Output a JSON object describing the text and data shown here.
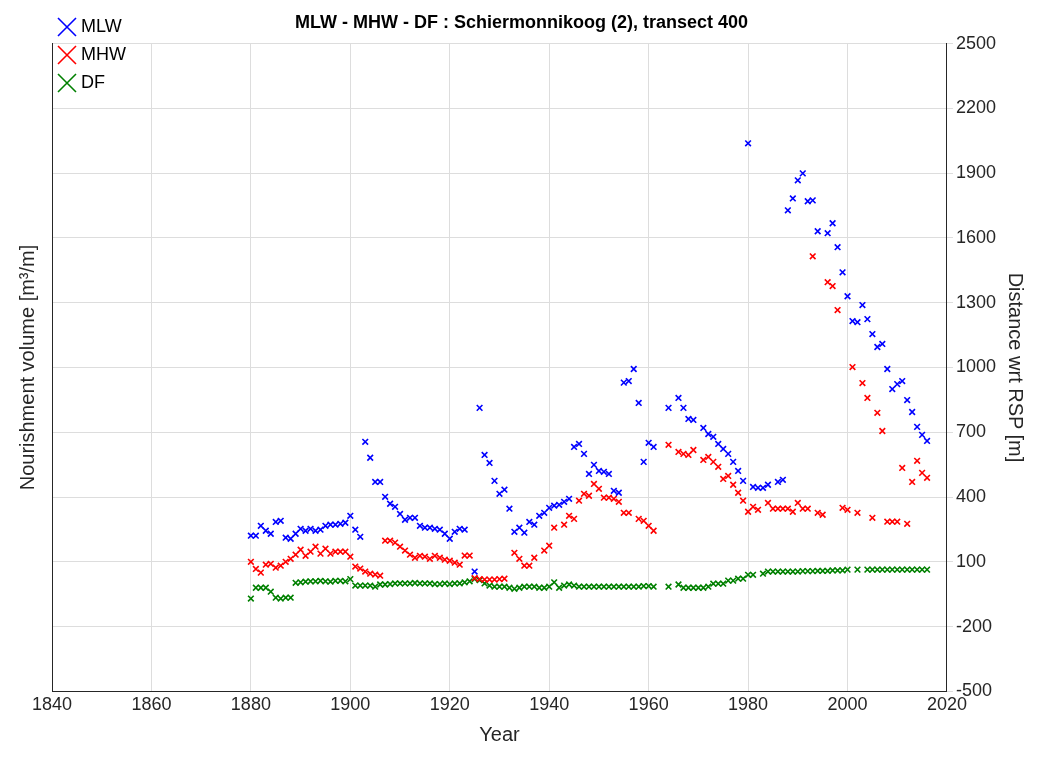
{
  "chart_data": {
    "type": "scatter",
    "title": "MLW - MHW - DF : Schiermonnikoog (2), transect 400",
    "xlabel": "Year",
    "ylabel": "Nourishment volume [m³/m]",
    "y2label": "Distance wrt RSP [m]",
    "xlim": [
      1840,
      2020
    ],
    "xticks": [
      1840,
      1860,
      1880,
      1900,
      1920,
      1940,
      1960,
      1980,
      2000,
      2020
    ],
    "y2lim": [
      -500,
      2500
    ],
    "y2ticks": [
      -500,
      -200,
      100,
      400,
      700,
      1000,
      1300,
      1600,
      1900,
      2200,
      2500
    ],
    "grid": true,
    "legend": "top left",
    "marker": "cross",
    "series": [
      {
        "name": "MLW",
        "color": "#0000ff",
        "axis": "y2",
        "x": [
          1880,
          1881,
          1882,
          1883,
          1884,
          1885,
          1886,
          1887,
          1888,
          1889,
          1890,
          1891,
          1892,
          1893,
          1894,
          1895,
          1896,
          1897,
          1898,
          1899,
          1900,
          1901,
          1902,
          1903,
          1904,
          1905,
          1906,
          1907,
          1908,
          1909,
          1910,
          1911,
          1912,
          1913,
          1914,
          1915,
          1916,
          1917,
          1918,
          1919,
          1920,
          1921,
          1922,
          1923,
          1925,
          1926,
          1927,
          1928,
          1929,
          1930,
          1931,
          1932,
          1933,
          1934,
          1935,
          1936,
          1937,
          1938,
          1939,
          1940,
          1941,
          1942,
          1943,
          1944,
          1945,
          1946,
          1947,
          1948,
          1949,
          1950,
          1951,
          1952,
          1953,
          1954,
          1955,
          1956,
          1957,
          1958,
          1959,
          1960,
          1961,
          1964,
          1966,
          1967,
          1968,
          1969,
          1971,
          1972,
          1973,
          1974,
          1975,
          1976,
          1977,
          1978,
          1979,
          1980,
          1981,
          1982,
          1983,
          1984,
          1986,
          1987,
          1988,
          1989,
          1990,
          1991,
          1992,
          1993,
          1994,
          1996,
          1997,
          1998,
          1999,
          2000,
          2001,
          2002,
          2003,
          2004,
          2005,
          2006,
          2007,
          2008,
          2009,
          2010,
          2011,
          2012,
          2013,
          2014,
          2015,
          2016
        ],
        "values": [
          221,
          221,
          267,
          244,
          230,
          285,
          290,
          212,
          207,
          230,
          253,
          244,
          253,
          244,
          249,
          267,
          272,
          272,
          276,
          281,
          313,
          249,
          216,
          656,
          582,
          470,
          470,
          401,
          369,
          355,
          322,
          295,
          304,
          304,
          267,
          258,
          258,
          253,
          249,
          230,
          207,
          239,
          253,
          249,
          55,
          813,
          595,
          558,
          475,
          415,
          434,
          346,
          239,
          258,
          235,
          285,
          272,
          313,
          327,
          350,
          360,
          364,
          378,
          392,
          632,
          646,
          600,
          507,
          549,
          521,
          517,
          507,
          429,
          420,
          930,
          937,
          993,
          836,
          563,
          651,
          632,
          813,
          859,
          813,
          762,
          757,
          720,
          692,
          679,
          646,
          623,
          600,
          563,
          521,
          475,
          2038,
          447,
          443,
          443,
          457,
          470,
          480,
          1728,
          1783,
          1867,
          1899,
          1770,
          1774,
          1631,
          1622,
          1668,
          1557,
          1441,
          1330,
          1215,
          1210,
          1289,
          1224,
          1155,
          1095,
          1109,
          993,
          900,
          923,
          937,
          849,
          794,
          725,
          688,
          660
        ]
      },
      {
        "name": "MHW",
        "color": "#ff0000",
        "axis": "y2",
        "x": [
          1880,
          1881,
          1882,
          1883,
          1884,
          1885,
          1886,
          1887,
          1888,
          1889,
          1890,
          1891,
          1892,
          1893,
          1894,
          1895,
          1896,
          1897,
          1898,
          1899,
          1900,
          1901,
          1902,
          1903,
          1904,
          1905,
          1906,
          1907,
          1908,
          1909,
          1910,
          1911,
          1912,
          1913,
          1914,
          1915,
          1916,
          1917,
          1918,
          1919,
          1920,
          1921,
          1922,
          1923,
          1924,
          1925,
          1926,
          1927,
          1928,
          1929,
          1930,
          1931,
          1933,
          1934,
          1935,
          1936,
          1937,
          1939,
          1940,
          1941,
          1943,
          1944,
          1945,
          1946,
          1947,
          1948,
          1949,
          1950,
          1951,
          1952,
          1953,
          1954,
          1955,
          1956,
          1958,
          1959,
          1960,
          1961,
          1964,
          1966,
          1967,
          1968,
          1969,
          1971,
          1972,
          1973,
          1974,
          1975,
          1976,
          1977,
          1978,
          1979,
          1980,
          1981,
          1982,
          1984,
          1985,
          1986,
          1987,
          1988,
          1989,
          1990,
          1991,
          1992,
          1993,
          1994,
          1995,
          1996,
          1997,
          1998,
          1999,
          2000,
          2001,
          2002,
          2003,
          2004,
          2005,
          2006,
          2007,
          2008,
          2009,
          2010,
          2011,
          2012,
          2013,
          2014,
          2015,
          2016
        ],
        "values": [
          100,
          67,
          50,
          87,
          91,
          73,
          82,
          100,
          114,
          133,
          156,
          128,
          147,
          170,
          138,
          161,
          138,
          147,
          147,
          147,
          124,
          78,
          69,
          55,
          45,
          41,
          36,
          198,
          198,
          189,
          170,
          152,
          133,
          119,
          128,
          124,
          114,
          128,
          119,
          110,
          105,
          96,
          87,
          129,
          129,
          25,
          20,
          18,
          18,
          18,
          20,
          22,
          142,
          114,
          82,
          82,
          119,
          152,
          175,
          258,
          272,
          313,
          299,
          383,
          415,
          406,
          461,
          438,
          397,
          397,
          392,
          378,
          327,
          327,
          299,
          290,
          267,
          244,
          642,
          609,
          600,
          595,
          618,
          572,
          586,
          563,
          540,
          484,
          498,
          457,
          420,
          383,
          332,
          355,
          341,
          373,
          346,
          346,
          346,
          346,
          332,
          373,
          346,
          346,
          1515,
          327,
          318,
          1395,
          1377,
          1266,
          350,
          341,
          1002,
          327,
          928,
          859,
          304,
          790,
          706,
          286,
          286,
          286,
          535,
          276,
          470,
          568,
          512,
          489
        ]
      },
      {
        "name": "DF",
        "color": "#008000",
        "axis": "y2",
        "x": [
          1880,
          1881,
          1882,
          1883,
          1884,
          1885,
          1886,
          1887,
          1888,
          1889,
          1890,
          1891,
          1892,
          1893,
          1894,
          1895,
          1896,
          1897,
          1898,
          1899,
          1900,
          1901,
          1902,
          1903,
          1904,
          1905,
          1906,
          1907,
          1908,
          1909,
          1910,
          1911,
          1912,
          1913,
          1914,
          1915,
          1916,
          1917,
          1918,
          1919,
          1920,
          1921,
          1922,
          1923,
          1924,
          1925,
          1926,
          1927,
          1928,
          1929,
          1930,
          1931,
          1932,
          1933,
          1934,
          1935,
          1936,
          1937,
          1938,
          1939,
          1940,
          1941,
          1942,
          1943,
          1944,
          1945,
          1946,
          1947,
          1948,
          1949,
          1950,
          1951,
          1952,
          1953,
          1954,
          1955,
          1956,
          1957,
          1958,
          1959,
          1960,
          1961,
          1964,
          1966,
          1967,
          1968,
          1969,
          1970,
          1971,
          1972,
          1973,
          1974,
          1975,
          1976,
          1977,
          1978,
          1979,
          1980,
          1981,
          1983,
          1984,
          1985,
          1986,
          1987,
          1988,
          1989,
          1990,
          1991,
          1992,
          1993,
          1994,
          1995,
          1996,
          1997,
          1998,
          1999,
          2000,
          2002,
          2004,
          2005,
          2006,
          2007,
          2008,
          2009,
          2010,
          2011,
          2012,
          2013,
          2014,
          2015,
          2016
        ],
        "values": [
          -70,
          -20,
          -20,
          -20,
          -38,
          -66,
          -70,
          -66,
          -66,
          3,
          5,
          8,
          10,
          10,
          12,
          10,
          8,
          12,
          12,
          10,
          20,
          -10,
          -10,
          -10,
          -10,
          -15,
          -5,
          -5,
          -3,
          0,
          0,
          0,
          0,
          2,
          0,
          0,
          0,
          -3,
          -3,
          0,
          -3,
          0,
          0,
          5,
          10,
          20,
          15,
          0,
          -10,
          -15,
          -15,
          -15,
          -20,
          -25,
          -20,
          -15,
          -15,
          -15,
          -20,
          -20,
          -15,
          5,
          -20,
          -10,
          -5,
          -10,
          -15,
          -15,
          -15,
          -15,
          -15,
          -15,
          -15,
          -15,
          -15,
          -15,
          -15,
          -15,
          -15,
          -12,
          -12,
          -15,
          -15,
          -5,
          -20,
          -20,
          -20,
          -20,
          -20,
          -15,
          -1,
          -1,
          -1,
          13,
          13,
          22,
          22,
          40,
          40,
          45,
          55,
          55,
          55,
          55,
          55,
          55,
          55,
          57,
          57,
          57,
          58,
          58,
          58,
          60,
          60,
          60,
          64,
          64,
          64,
          64,
          64,
          64,
          64,
          64,
          64,
          64,
          64,
          64,
          64,
          64,
          64
        ]
      }
    ]
  }
}
